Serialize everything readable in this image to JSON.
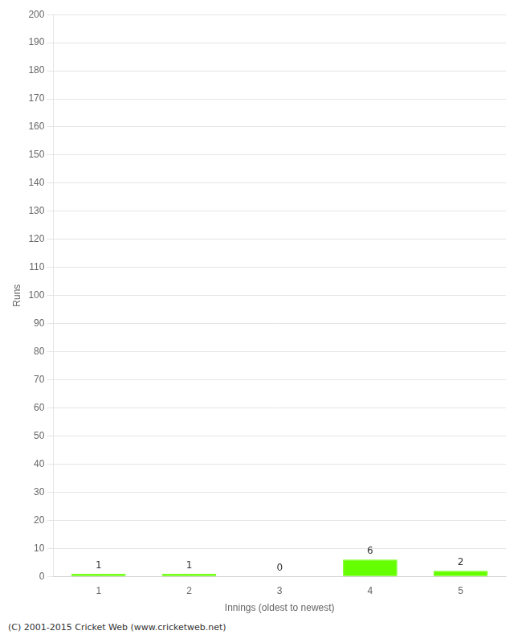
{
  "chart_data": {
    "type": "bar",
    "xlabel": "Innings (oldest to newest)",
    "ylabel": "Runs",
    "categories": [
      1,
      2,
      3,
      4,
      5
    ],
    "values": [
      1,
      1,
      0,
      6,
      2
    ],
    "color": "#66ff00",
    "ylim": [
      0,
      200
    ],
    "yticks": [
      0,
      10,
      20,
      30,
      40,
      50,
      60,
      70,
      80,
      90,
      100,
      110,
      120,
      130,
      140,
      150,
      160,
      170,
      180,
      190,
      200
    ],
    "grid": true,
    "data_labels": true,
    "footer": "(C) 2001-2015 Cricket Web (www.cricketweb.net)"
  }
}
